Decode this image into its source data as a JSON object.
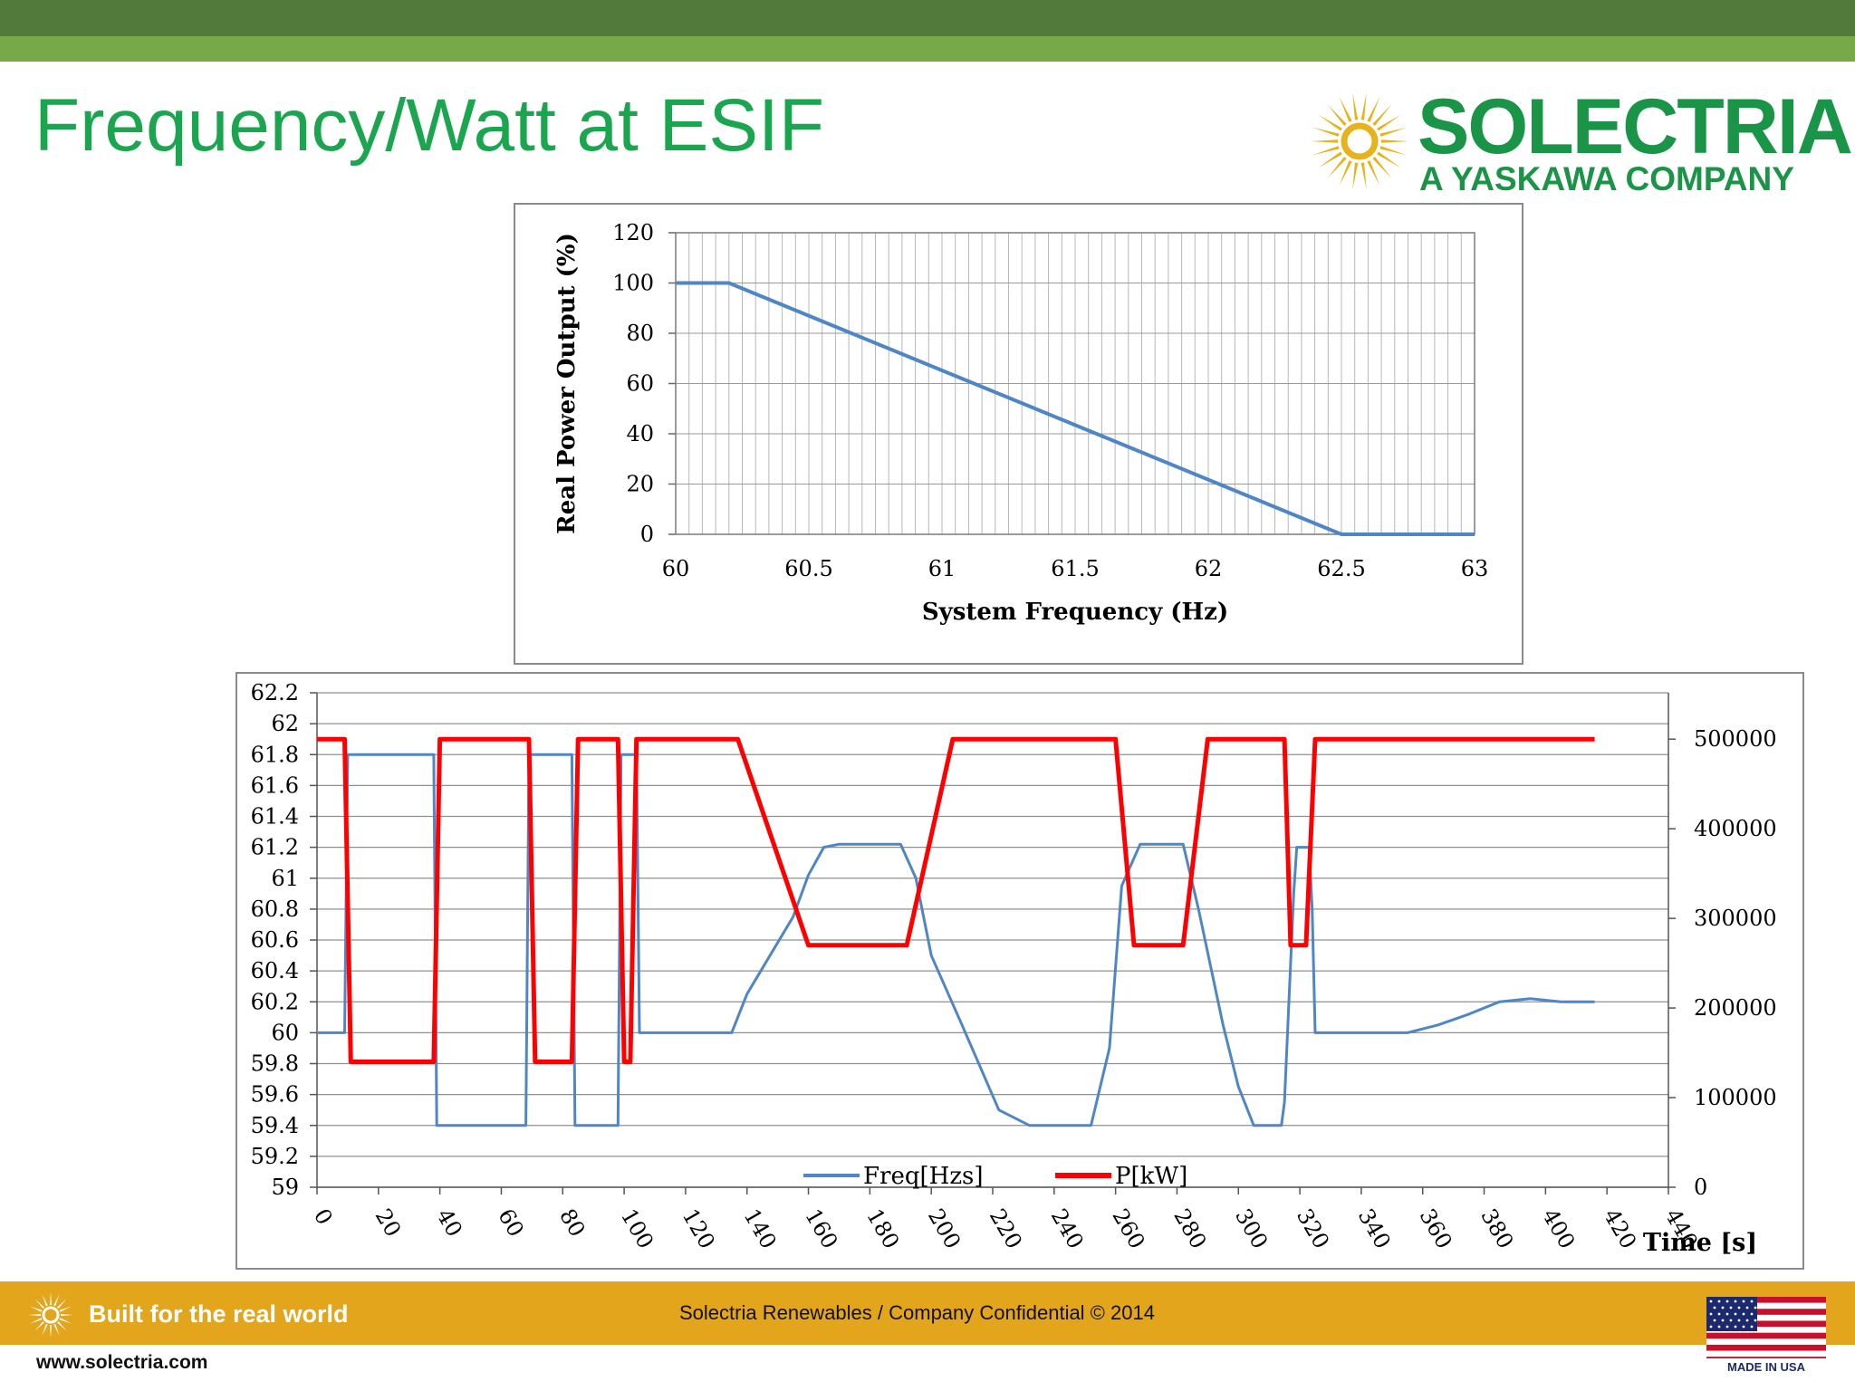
{
  "slide": {
    "title": "Frequency/Watt at ESIF",
    "logo": {
      "name": "SOLECTRIA",
      "subtitle": "A YASKAWA COMPANY",
      "sun_icon": "sun-icon"
    },
    "footer": {
      "tagline": "Built for the real world",
      "center_text": "Solectria Renewables / Company Confidential © 2014",
      "website": "www.solectria.com",
      "flag_caption": "MADE IN USA"
    },
    "colors": {
      "title_green": "#1aa54f",
      "logo_green": "#1a9446",
      "footer_gold": "#e3a51b",
      "top_dark": "#527a3a",
      "top_light": "#77a949",
      "freq_blue": "#4f86c6",
      "power_red": "#ff0000"
    }
  },
  "chart_data": [
    {
      "type": "line",
      "xlabel": "System Frequency (Hz)",
      "ylabel": "Real Power Output (%)",
      "xlim": [
        60,
        63
      ],
      "ylim": [
        0,
        120
      ],
      "x_ticks": [
        "60",
        "60.5",
        "61",
        "61.5",
        "62",
        "62.5",
        "63"
      ],
      "y_ticks": [
        "0",
        "20",
        "40",
        "60",
        "80",
        "100",
        "120"
      ],
      "grid": true,
      "series": [
        {
          "x": [
            60,
            60.2,
            62.5,
            63
          ],
          "y": [
            100,
            100,
            0,
            0
          ],
          "color": "#4f86c6"
        }
      ]
    },
    {
      "type": "line",
      "xlabel": "Time [s]",
      "xlim": [
        0,
        440
      ],
      "ylim": [
        59,
        62.2
      ],
      "y2lim": [
        0,
        500000
      ],
      "x_ticks": [
        "0",
        "20",
        "40",
        "60",
        "80",
        "100",
        "120",
        "140",
        "160",
        "180",
        "200",
        "220",
        "240",
        "260",
        "280",
        "300",
        "320",
        "340",
        "360",
        "380",
        "400",
        "420",
        "440"
      ],
      "y_ticks": [
        "59",
        "59.2",
        "59.4",
        "59.6",
        "59.8",
        "60",
        "60.2",
        "60.4",
        "60.6",
        "60.8",
        "61",
        "61.2",
        "61.4",
        "61.6",
        "61.8",
        "62",
        "62.2"
      ],
      "y2_ticks": [
        "0",
        "100000",
        "200000",
        "300000",
        "400000",
        "500000"
      ],
      "legend": "bottom-center",
      "grid": true,
      "series": [
        {
          "name": "Freq[Hzs]",
          "color": "#4f86c6",
          "axis": "left",
          "x": [
            0,
            9,
            10,
            38,
            39,
            68,
            69,
            83,
            84,
            98,
            99,
            104,
            105,
            135,
            140,
            155,
            160,
            165,
            170,
            190,
            195,
            200,
            210,
            222,
            232,
            252,
            258,
            262,
            268,
            282,
            287,
            295,
            300,
            305,
            314,
            315,
            318,
            319,
            323,
            324,
            325,
            330,
            335,
            345,
            355,
            365,
            375,
            385,
            395,
            405,
            416
          ],
          "y": [
            60,
            60,
            61.8,
            61.8,
            59.4,
            59.4,
            61.8,
            61.8,
            59.4,
            59.4,
            61.8,
            61.8,
            60,
            60,
            60.25,
            60.75,
            61.02,
            61.2,
            61.22,
            61.22,
            61.0,
            60.5,
            60.05,
            59.5,
            59.4,
            59.4,
            59.9,
            60.95,
            61.22,
            61.22,
            60.8,
            60.05,
            59.65,
            59.4,
            59.4,
            59.55,
            60.9,
            61.2,
            61.2,
            60.8,
            60,
            60,
            60,
            60,
            60,
            60.05,
            60.12,
            60.2,
            60.22,
            60.2,
            60.2
          ]
        },
        {
          "name": "P[kW]",
          "color": "#ff0000",
          "axis": "right",
          "x": [
            0,
            9,
            11,
            38,
            40,
            69,
            71,
            83,
            85,
            98,
            100,
            102,
            104,
            105,
            137,
            160,
            165,
            192,
            207,
            260,
            266,
            282,
            290,
            314,
            315,
            317,
            322,
            325,
            416
          ],
          "y": [
            500000,
            500000,
            140000,
            140000,
            500000,
            500000,
            140000,
            140000,
            500000,
            500000,
            140000,
            140000,
            500000,
            500000,
            500000,
            270000,
            270000,
            270000,
            500000,
            500000,
            270000,
            270000,
            500000,
            500000,
            500000,
            270000,
            270000,
            500000,
            500000
          ]
        }
      ]
    }
  ]
}
